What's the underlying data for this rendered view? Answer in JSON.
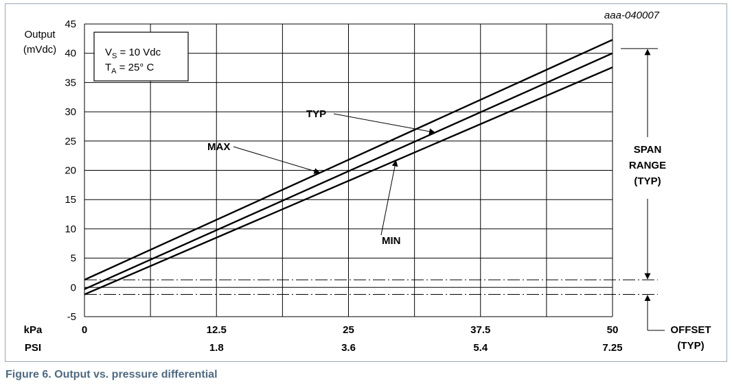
{
  "figure_id": "aaa-040007",
  "caption": "Figure 6.  Output vs. pressure differential",
  "chart_data": {
    "type": "line",
    "ylabel_line1": "Output",
    "ylabel_line2": "(mVdc)",
    "ylim": [
      -5,
      45
    ],
    "yticks": [
      -5,
      0,
      5,
      10,
      15,
      20,
      25,
      30,
      35,
      40,
      45
    ],
    "xlim": [
      0,
      50
    ],
    "x_gridlines": [
      0,
      6.25,
      12.5,
      18.75,
      25,
      31.25,
      37.5,
      43.75,
      50
    ],
    "x_axis_label": "kPa",
    "x_ticks": [
      {
        "x": 0,
        "label": "0"
      },
      {
        "x": 12.5,
        "label": "12.5"
      },
      {
        "x": 25,
        "label": "25"
      },
      {
        "x": 37.5,
        "label": "37.5"
      },
      {
        "x": 50,
        "label": "50"
      }
    ],
    "x2_axis_label": "PSI",
    "x2_ticks": [
      {
        "x": 12.5,
        "label": "1.8"
      },
      {
        "x": 25,
        "label": "3.6"
      },
      {
        "x": 37.5,
        "label": "5.4"
      },
      {
        "x": 50,
        "label": "7.25"
      }
    ],
    "grid": true,
    "series": [
      {
        "name": "MAX",
        "x": [
          0,
          50
        ],
        "y": [
          1.3,
          42.3
        ]
      },
      {
        "name": "TYP",
        "x": [
          0,
          50
        ],
        "y": [
          -0.3,
          40
        ]
      },
      {
        "name": "MIN",
        "x": [
          0,
          50
        ],
        "y": [
          -1.2,
          37.6
        ]
      }
    ],
    "offset_lines": [
      1.3,
      -1.2
    ],
    "conditions": {
      "vs_prefix": "V",
      "vs_sub": "S",
      "vs_rest": " = 10 Vdc",
      "ta_prefix": "T",
      "ta_sub": "A",
      "ta_rest": " = 25° C"
    },
    "annotations": {
      "span_top": 40.8,
      "span_lines": [
        "SPAN",
        "RANGE",
        "(TYP)"
      ],
      "offset_lines_text": [
        "OFFSET",
        "(TYP)"
      ]
    }
  }
}
